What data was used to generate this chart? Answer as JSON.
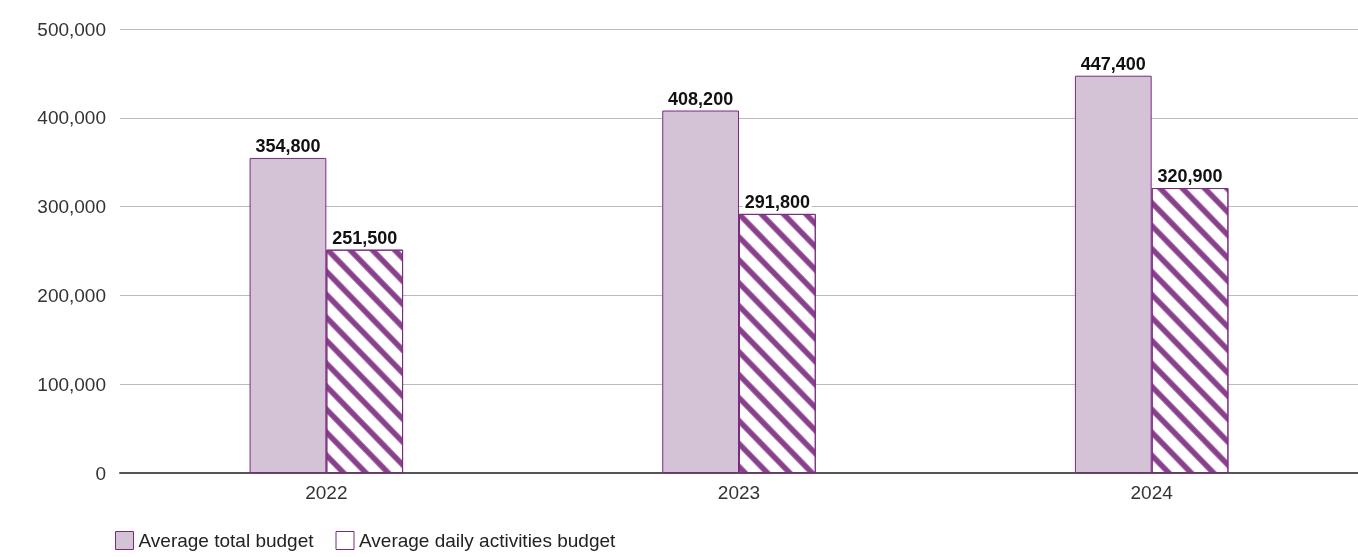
{
  "chart_data": {
    "type": "bar",
    "categories": [
      "2022",
      "2023",
      "2024"
    ],
    "series": [
      {
        "name": "Average total budget",
        "color": "#d4c2d7",
        "values": [
          354800,
          408200,
          447400
        ],
        "value_labels": [
          "354,800",
          "408,200",
          "447,400"
        ]
      },
      {
        "name": "Average daily activities budget",
        "color": "#ffffff",
        "values": [
          251500,
          291800,
          320900
        ],
        "value_labels": [
          "251,500",
          "291,800",
          "320,900"
        ]
      }
    ],
    "ylim": [
      0,
      500000
    ],
    "yticks": [
      0,
      {
        "value": 100000,
        "label": "100,000"
      },
      {
        "value": 200000,
        "label": "200,000"
      },
      {
        "value": 300000,
        "label": "300,000"
      },
      {
        "value": 400000,
        "label": "400,000"
      },
      {
        "value": 500000,
        "label": "500,000"
      }
    ],
    "grid": "y",
    "legend": "bottom left"
  }
}
